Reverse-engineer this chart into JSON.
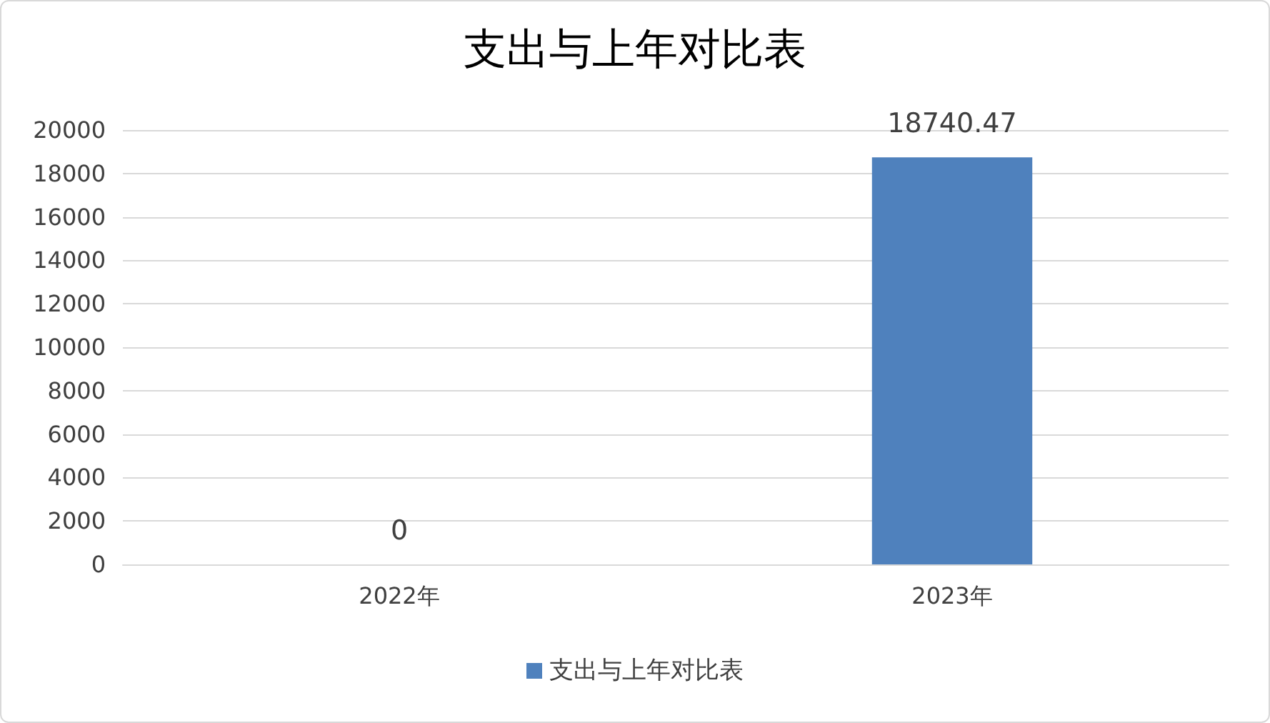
{
  "chart_data": {
    "type": "bar",
    "title": "支出与上年对比表",
    "categories": [
      "2022年",
      "2023年"
    ],
    "series": [
      {
        "name": "支出与上年对比表",
        "color": "#4f81bd",
        "values": [
          0,
          18740.47
        ]
      }
    ],
    "ylim": [
      0,
      20000
    ],
    "yticks": [
      0,
      2000,
      4000,
      6000,
      8000,
      10000,
      12000,
      14000,
      16000,
      18000,
      20000
    ],
    "grid": "y",
    "legend": "bottom",
    "data_labels": true
  }
}
